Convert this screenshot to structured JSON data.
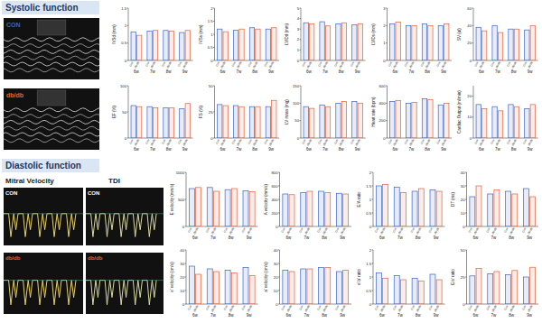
{
  "figure": {
    "systolic_title": "Systolic function",
    "diastolic_title": "Diastolic function",
    "con": "CON",
    "dbdb": "db/db",
    "mitral": "Mitral Velocity",
    "tdi": "TDI"
  },
  "chart_data": [
    {
      "type": "bar",
      "y_label": "IVSd (mm)",
      "categories": [
        "6w",
        "7w",
        "8w",
        "9w"
      ],
      "series": [
        {
          "name": "Con",
          "color": "#3a64c8",
          "values": [
            0.82,
            0.84,
            0.86,
            0.8
          ]
        },
        {
          "name": "db/db",
          "color": "#e0603c",
          "values": [
            0.72,
            0.86,
            0.84,
            0.86
          ]
        }
      ],
      "ylim": [
        0,
        1.5
      ],
      "yticks": [
        0,
        0.5,
        1,
        1.5
      ]
    },
    {
      "type": "bar",
      "y_label": "IVSs (mm)",
      "categories": [
        "6w",
        "7w",
        "8w",
        "9w"
      ],
      "series": [
        {
          "name": "Con",
          "color": "#3a64c8",
          "values": [
            1.2,
            1.15,
            1.25,
            1.2
          ]
        },
        {
          "name": "db/db",
          "color": "#e0603c",
          "values": [
            1.1,
            1.2,
            1.2,
            1.25
          ]
        }
      ],
      "ylim": [
        0,
        2
      ],
      "yticks": [
        0,
        0.5,
        1,
        1.5,
        2
      ]
    },
    {
      "type": "bar",
      "y_label": "LVIDd (mm)",
      "categories": [
        "6w",
        "7w",
        "8w",
        "9w"
      ],
      "series": [
        {
          "name": "Con",
          "color": "#3a64c8",
          "values": [
            3.6,
            3.7,
            3.5,
            3.4
          ]
        },
        {
          "name": "db/db",
          "color": "#e0603c",
          "values": [
            3.5,
            3.3,
            3.6,
            3.5
          ]
        }
      ],
      "ylim": [
        0,
        5
      ],
      "yticks": [
        0,
        1,
        2,
        3,
        4,
        5
      ]
    },
    {
      "type": "bar",
      "y_label": "LVIDs (mm)",
      "categories": [
        "6w",
        "7w",
        "8w",
        "9w"
      ],
      "series": [
        {
          "name": "Con",
          "color": "#3a64c8",
          "values": [
            2.1,
            2.0,
            2.1,
            2.0
          ]
        },
        {
          "name": "db/db",
          "color": "#e0603c",
          "values": [
            2.2,
            2.0,
            2.0,
            2.1
          ]
        }
      ],
      "ylim": [
        0,
        3
      ],
      "yticks": [
        0,
        1,
        2,
        3
      ]
    },
    {
      "type": "bar",
      "y_label": "SV (ul)",
      "categories": [
        "6w",
        "7w",
        "8w",
        "9w"
      ],
      "series": [
        {
          "name": "Con",
          "color": "#3a64c8",
          "values": [
            38,
            40,
            36,
            35
          ]
        },
        {
          "name": "db/db",
          "color": "#e0603c",
          "values": [
            34,
            32,
            36,
            40
          ]
        }
      ],
      "ylim": [
        0,
        60
      ],
      "yticks": [
        0,
        20,
        40,
        60
      ]
    },
    {
      "type": "bar",
      "y_label": "EF (%)",
      "categories": [
        "6w",
        "7w",
        "8w",
        "9w"
      ],
      "series": [
        {
          "name": "Con",
          "color": "#3a64c8",
          "values": [
            62,
            60,
            58,
            56
          ]
        },
        {
          "name": "db/db",
          "color": "#e0603c",
          "values": [
            60,
            58,
            58,
            66
          ]
        }
      ],
      "ylim": [
        0,
        100
      ],
      "yticks": [
        0,
        50,
        100
      ]
    },
    {
      "type": "bar",
      "y_label": "FS (%)",
      "categories": [
        "6w",
        "7w",
        "8w",
        "9w"
      ],
      "series": [
        {
          "name": "Con",
          "color": "#3a64c8",
          "values": [
            32,
            31,
            30,
            30
          ]
        },
        {
          "name": "db/db",
          "color": "#e0603c",
          "values": [
            31,
            30,
            30,
            36
          ]
        }
      ],
      "ylim": [
        0,
        50
      ],
      "yticks": [
        0,
        25,
        50
      ]
    },
    {
      "type": "bar",
      "y_label": "LV mass (mg)",
      "categories": [
        "6w",
        "7w",
        "8w",
        "9w"
      ],
      "series": [
        {
          "name": "Con",
          "color": "#3a64c8",
          "values": [
            90,
            95,
            100,
            105
          ]
        },
        {
          "name": "db/db",
          "color": "#e0603c",
          "values": [
            85,
            90,
            105,
            100
          ]
        }
      ],
      "ylim": [
        0,
        150
      ],
      "yticks": [
        0,
        50,
        100,
        150
      ]
    },
    {
      "type": "bar",
      "y_label": "Heart rate (bpm)",
      "categories": [
        "6w",
        "7w",
        "8w",
        "9w"
      ],
      "series": [
        {
          "name": "Con",
          "color": "#3a64c8",
          "values": [
            420,
            400,
            450,
            380
          ]
        },
        {
          "name": "db/db",
          "color": "#e0603c",
          "values": [
            430,
            410,
            440,
            400
          ]
        }
      ],
      "ylim": [
        0,
        600
      ],
      "yticks": [
        0,
        200,
        400,
        600
      ]
    },
    {
      "type": "bar",
      "y_label": "Cardiac Output (ml/min)",
      "categories": [
        "6w",
        "7w",
        "8w",
        "9w"
      ],
      "series": [
        {
          "name": "Con",
          "color": "#3a64c8",
          "values": [
            16,
            15,
            16,
            14
          ]
        },
        {
          "name": "db/db",
          "color": "#e0603c",
          "values": [
            14,
            13,
            15,
            16
          ]
        }
      ],
      "ylim": [
        0,
        25
      ],
      "yticks": [
        0,
        10,
        20
      ]
    },
    {
      "type": "bar",
      "y_label": "E velocity (mm/s)",
      "categories": [
        "6w",
        "7w",
        "8w",
        "9w"
      ],
      "series": [
        {
          "name": "Con",
          "color": "#3a64c8",
          "values": [
            700,
            720,
            680,
            660
          ]
        },
        {
          "name": "db/db",
          "color": "#e0603c",
          "values": [
            720,
            650,
            700,
            640
          ]
        }
      ],
      "ylim": [
        0,
        1000
      ],
      "yticks": [
        0,
        500,
        1000
      ]
    },
    {
      "type": "bar",
      "y_label": "A velocity (mm/s)",
      "categories": [
        "6w",
        "7w",
        "8w",
        "9w"
      ],
      "series": [
        {
          "name": "Con",
          "color": "#3a64c8",
          "values": [
            480,
            500,
            520,
            490
          ]
        },
        {
          "name": "db/db",
          "color": "#e0603c",
          "values": [
            470,
            520,
            500,
            480
          ]
        }
      ],
      "ylim": [
        0,
        800
      ],
      "yticks": [
        0,
        200,
        400,
        600,
        800
      ]
    },
    {
      "type": "bar",
      "y_label": "E/A ratio",
      "categories": [
        "6w",
        "7w",
        "8w",
        "9w"
      ],
      "series": [
        {
          "name": "Con",
          "color": "#3a64c8",
          "values": [
            1.5,
            1.45,
            1.3,
            1.35
          ]
        },
        {
          "name": "db/db",
          "color": "#e0603c",
          "values": [
            1.55,
            1.25,
            1.4,
            1.3
          ]
        }
      ],
      "ylim": [
        0,
        2
      ],
      "yticks": [
        0,
        0.5,
        1,
        1.5,
        2
      ]
    },
    {
      "type": "bar",
      "y_label": "DT (ms)",
      "categories": [
        "6w",
        "7w",
        "8w",
        "9w"
      ],
      "series": [
        {
          "name": "Con",
          "color": "#3a64c8",
          "values": [
            22,
            24,
            26,
            28
          ]
        },
        {
          "name": "db/db",
          "color": "#e0603c",
          "values": [
            30,
            27,
            24,
            22
          ]
        }
      ],
      "ylim": [
        0,
        40
      ],
      "yticks": [
        0,
        10,
        20,
        30,
        40
      ]
    },
    {
      "type": "bar",
      "y_label": "e' velocity (cm/s)",
      "categories": [
        "6w",
        "7w",
        "8w",
        "9w"
      ],
      "series": [
        {
          "name": "Con",
          "color": "#3a64c8",
          "values": [
            28,
            26,
            25,
            27
          ]
        },
        {
          "name": "db/db",
          "color": "#e0603c",
          "values": [
            22,
            24,
            23,
            21
          ]
        }
      ],
      "ylim": [
        0,
        40
      ],
      "yticks": [
        0,
        10,
        20,
        30,
        40
      ]
    },
    {
      "type": "bar",
      "y_label": "a' velocity (cm/s)",
      "categories": [
        "6w",
        "7w",
        "8w",
        "9w"
      ],
      "series": [
        {
          "name": "Con",
          "color": "#3a64c8",
          "values": [
            25,
            26,
            27,
            24
          ]
        },
        {
          "name": "db/db",
          "color": "#e0603c",
          "values": [
            24,
            26,
            27,
            25
          ]
        }
      ],
      "ylim": [
        0,
        40
      ],
      "yticks": [
        0,
        10,
        20,
        30,
        40
      ]
    },
    {
      "type": "bar",
      "y_label": "e'/a' ratio",
      "categories": [
        "6w",
        "7w",
        "8w",
        "9w"
      ],
      "series": [
        {
          "name": "Con",
          "color": "#3a64c8",
          "values": [
            1.15,
            1.05,
            0.95,
            1.1
          ]
        },
        {
          "name": "db/db",
          "color": "#e0603c",
          "values": [
            0.95,
            0.9,
            0.85,
            0.9
          ]
        }
      ],
      "ylim": [
        0,
        2
      ],
      "yticks": [
        0,
        0.5,
        1,
        1.5,
        2
      ]
    },
    {
      "type": "bar",
      "y_label": "E/e' ratio",
      "categories": [
        "6w",
        "7w",
        "8w",
        "9w"
      ],
      "series": [
        {
          "name": "Con",
          "color": "#3a64c8",
          "values": [
            26,
            28,
            27,
            25
          ]
        },
        {
          "name": "db/db",
          "color": "#e0603c",
          "values": [
            33,
            30,
            31,
            34
          ]
        }
      ],
      "ylim": [
        0,
        50
      ],
      "yticks": [
        0,
        25,
        50
      ]
    }
  ]
}
